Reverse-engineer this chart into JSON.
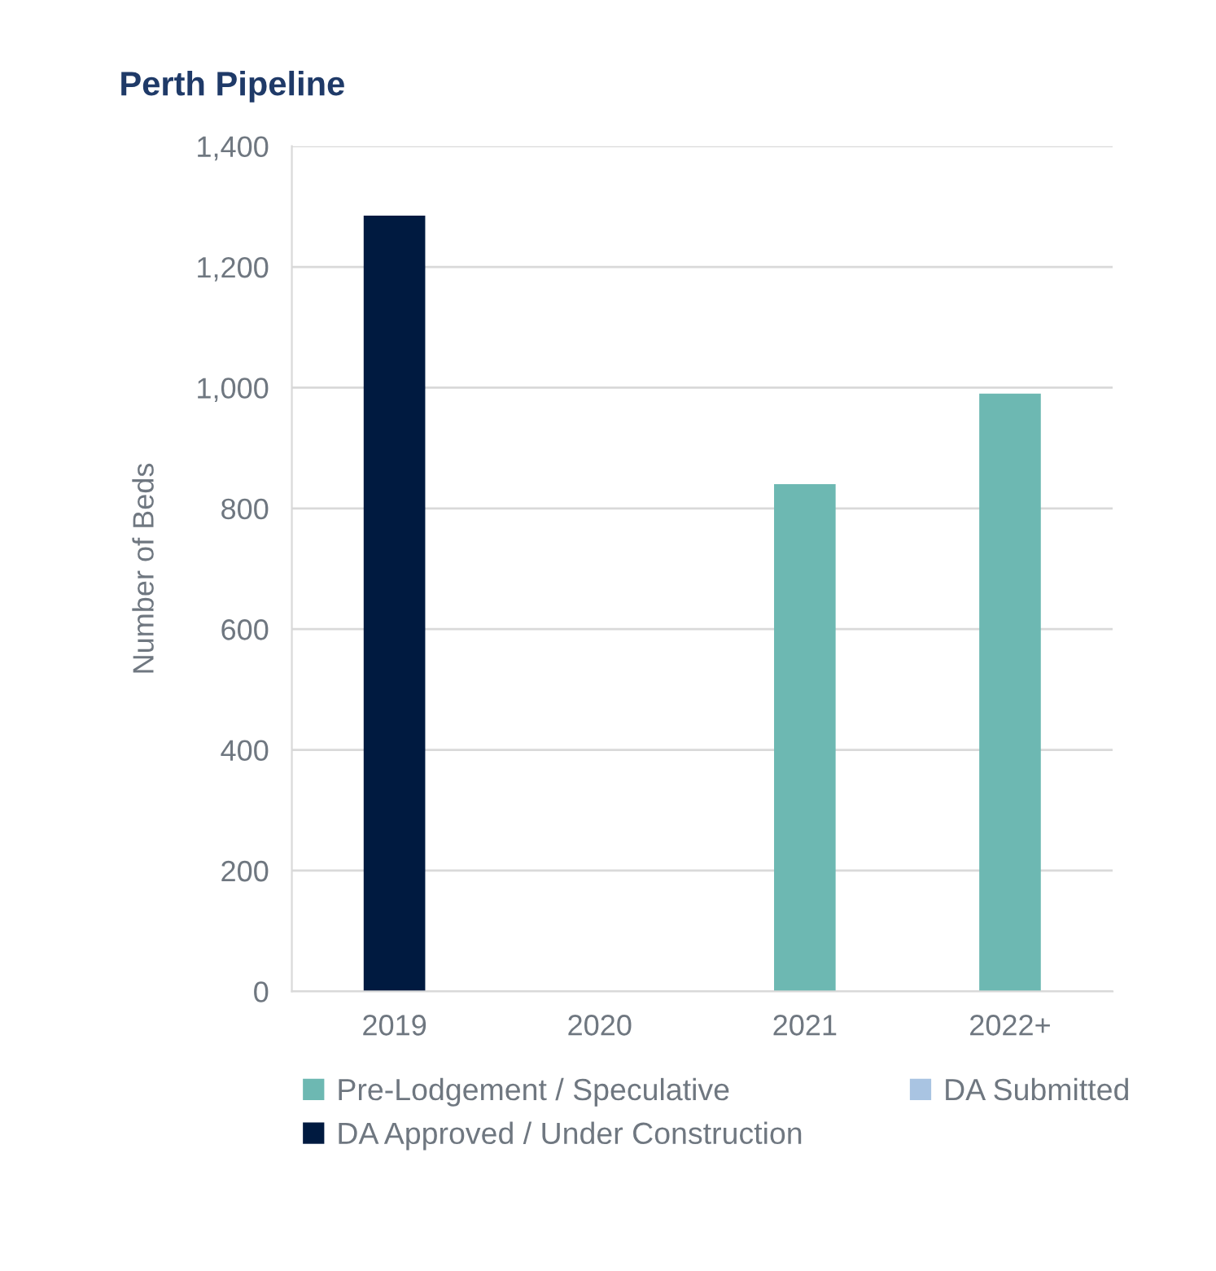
{
  "chart_data": {
    "type": "bar",
    "title": "Perth Pipeline",
    "ylabel": "Number of Beds",
    "categories": [
      "2019",
      "2020",
      "2021",
      "2022+"
    ],
    "series": [
      {
        "name": "Pre-Lodgement / Speculative",
        "color": "#6db8b2",
        "values": [
          0,
          0,
          840,
          990
        ]
      },
      {
        "name": "DA Approved / Under Construction",
        "color": "#001a40",
        "values": [
          1285,
          0,
          0,
          0
        ]
      },
      {
        "name": "DA Submitted",
        "color": "#a9c4e2",
        "values": [
          0,
          0,
          0,
          0
        ]
      }
    ],
    "stacked": true,
    "ylim": [
      0,
      1400
    ],
    "yticks": [
      0,
      {
        "value": 200,
        "label": "200"
      },
      {
        "value": 400,
        "label": "400"
      },
      {
        "value": 600,
        "label": "600"
      },
      {
        "value": 800,
        "label": "800"
      },
      {
        "value": 1000,
        "label": "1,000"
      },
      {
        "value": 1200,
        "label": "1,200"
      },
      {
        "value": 1400,
        "label": "1,400"
      }
    ],
    "grid": "y",
    "legend": "bottom"
  }
}
